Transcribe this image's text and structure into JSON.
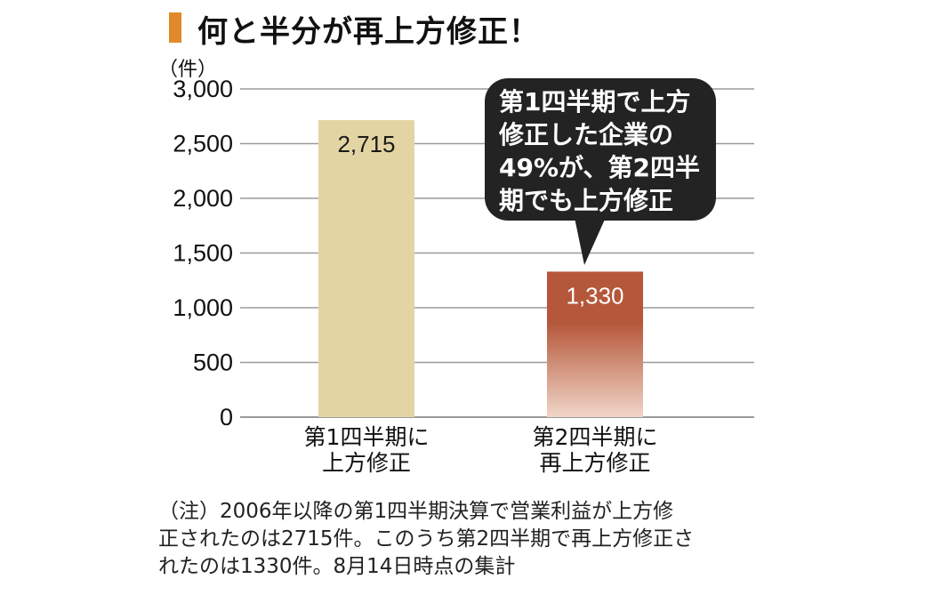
{
  "colors": {
    "title_accent": "#e08a2a",
    "bar1": "#e3d5a3",
    "bar2_top": "#b5573a",
    "bar2_bottom": "#f0d6c8",
    "grid": "#9a9a9a",
    "callout_bg": "#232323"
  },
  "chart_data": {
    "type": "bar",
    "title": "何と半分が再上方修正！",
    "unit": "（件）",
    "categories": [
      [
        "第1四半期に",
        "上方修正"
      ],
      [
        "第2四半期に",
        "再上方修正"
      ]
    ],
    "values": [
      2715,
      1330
    ],
    "value_labels": [
      "2,715",
      "1,330"
    ],
    "ylim": [
      0,
      3000
    ],
    "yticks": [
      0,
      500,
      1000,
      1500,
      2000,
      2500,
      3000
    ],
    "ytick_labels": [
      "0",
      "500",
      "1,000",
      "1,500",
      "2,000",
      "2,500",
      "3,000"
    ],
    "grid": true,
    "annotation": [
      "第1四半期で上方",
      "修正した企業の",
      "49%が、第2四半",
      "期でも上方修正"
    ]
  },
  "note": [
    "（注）2006年以降の第1四半期決算で営業利益が上方修",
    "正されたのは2715件。このうち第2四半期で再上方修正さ",
    "れたのは1330件。8月14日時点の集計"
  ]
}
